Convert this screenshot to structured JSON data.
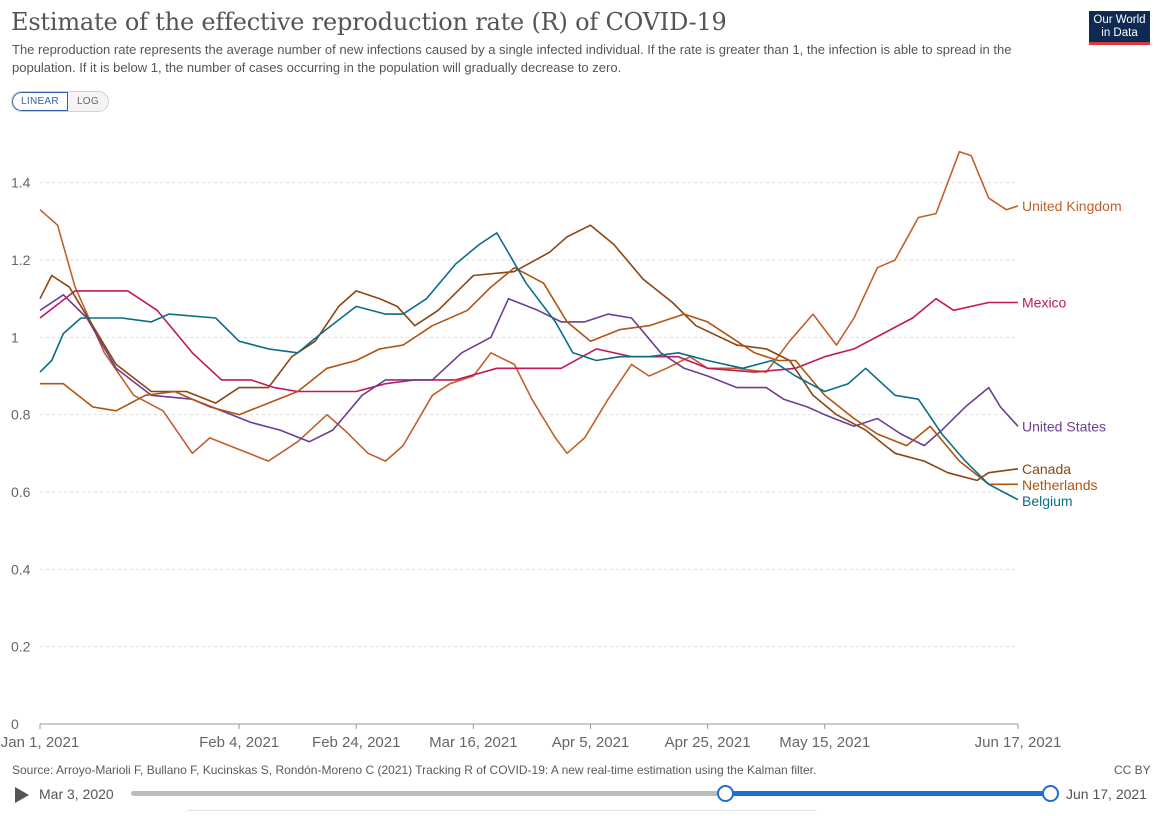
{
  "header": {
    "title": "Estimate of the effective reproduction rate (R) of COVID-19",
    "subtitle": "The reproduction rate represents the average number of new infections caused by a single infected individual. If the rate is greater than 1, the infection is able to spread in the population. If it is below 1, the number of cases occurring in the population will gradually decrease to zero.",
    "logo_line1": "Our World",
    "logo_line2": "in Data"
  },
  "controls": {
    "linear_label": "LINEAR",
    "log_label": "LOG",
    "active_scale": "linear"
  },
  "footer": {
    "source": "Source: Arroyo-Marioli F, Bullano F, Kucinskas S, Rondón-Moreno C (2021) Tracking R of COVID-19: A new real-time estimation using the Kalman filter.",
    "license": "CC BY"
  },
  "timeline": {
    "start_label": "Mar 3, 2020",
    "end_label": "Jun 17, 2021",
    "selected_start_fraction": 0.646,
    "selected_end_fraction": 1.0
  },
  "chart_data": {
    "type": "line",
    "title": "Estimate of the effective reproduction rate (R) of COVID-19",
    "xlabel": "",
    "ylabel": "",
    "x_unit": "date",
    "x_range": [
      "2021-01-01",
      "2021-06-17"
    ],
    "ylim": [
      0,
      1.5
    ],
    "yticks": [
      0,
      0.2,
      0.4,
      0.6,
      0.8,
      1,
      1.2,
      1.4
    ],
    "ytick_labels": [
      "0",
      "0.2",
      "0.4",
      "0.6",
      "0.8",
      "1",
      "1.2",
      "1.4"
    ],
    "xticks": [
      "2021-01-01",
      "2021-02-04",
      "2021-02-24",
      "2021-03-16",
      "2021-04-05",
      "2021-04-25",
      "2021-05-15",
      "2021-06-17"
    ],
    "xtick_labels": [
      "Jan 1, 2021",
      "Feb 4, 2021",
      "Feb 24, 2021",
      "Mar 16, 2021",
      "Apr 5, 2021",
      "Apr 25, 2021",
      "May 15, 2021",
      "Jun 17, 2021"
    ],
    "grid": true,
    "legend": "end-of-line labels",
    "series": [
      {
        "name": "United Kingdom",
        "color": "#c1602c",
        "points": [
          [
            "2021-01-01",
            1.33
          ],
          [
            "2021-01-04",
            1.29
          ],
          [
            "2021-01-07",
            1.13
          ],
          [
            "2021-01-12",
            0.96
          ],
          [
            "2021-01-17",
            0.85
          ],
          [
            "2021-01-22",
            0.81
          ],
          [
            "2021-01-27",
            0.7
          ],
          [
            "2021-01-30",
            0.74
          ],
          [
            "2021-02-04",
            0.71
          ],
          [
            "2021-02-09",
            0.68
          ],
          [
            "2021-02-14",
            0.73
          ],
          [
            "2021-02-19",
            0.8
          ],
          [
            "2021-02-22",
            0.76
          ],
          [
            "2021-02-26",
            0.7
          ],
          [
            "2021-03-01",
            0.68
          ],
          [
            "2021-03-04",
            0.72
          ],
          [
            "2021-03-09",
            0.85
          ],
          [
            "2021-03-12",
            0.88
          ],
          [
            "2021-03-16",
            0.9
          ],
          [
            "2021-03-19",
            0.96
          ],
          [
            "2021-03-23",
            0.93
          ],
          [
            "2021-03-26",
            0.84
          ],
          [
            "2021-03-30",
            0.74
          ],
          [
            "2021-04-01",
            0.7
          ],
          [
            "2021-04-04",
            0.74
          ],
          [
            "2021-04-08",
            0.84
          ],
          [
            "2021-04-12",
            0.93
          ],
          [
            "2021-04-15",
            0.9
          ],
          [
            "2021-04-18",
            0.92
          ],
          [
            "2021-04-22",
            0.95
          ],
          [
            "2021-04-25",
            0.92
          ],
          [
            "2021-04-30",
            0.92
          ],
          [
            "2021-05-05",
            0.91
          ],
          [
            "2021-05-09",
            0.99
          ],
          [
            "2021-05-13",
            1.06
          ],
          [
            "2021-05-17",
            0.98
          ],
          [
            "2021-05-20",
            1.05
          ],
          [
            "2021-05-24",
            1.18
          ],
          [
            "2021-05-27",
            1.2
          ],
          [
            "2021-05-31",
            1.31
          ],
          [
            "2021-06-03",
            1.32
          ],
          [
            "2021-06-07",
            1.48
          ],
          [
            "2021-06-09",
            1.47
          ],
          [
            "2021-06-12",
            1.36
          ],
          [
            "2021-06-15",
            1.33
          ],
          [
            "2021-06-17",
            1.34
          ]
        ]
      },
      {
        "name": "Mexico",
        "color": "#c2185b",
        "points": [
          [
            "2021-01-01",
            1.05
          ],
          [
            "2021-01-07",
            1.12
          ],
          [
            "2021-01-16",
            1.12
          ],
          [
            "2021-01-21",
            1.07
          ],
          [
            "2021-01-27",
            0.96
          ],
          [
            "2021-02-01",
            0.89
          ],
          [
            "2021-02-06",
            0.89
          ],
          [
            "2021-02-10",
            0.87
          ],
          [
            "2021-02-14",
            0.86
          ],
          [
            "2021-02-24",
            0.86
          ],
          [
            "2021-03-01",
            0.88
          ],
          [
            "2021-03-06",
            0.89
          ],
          [
            "2021-03-13",
            0.89
          ],
          [
            "2021-03-20",
            0.92
          ],
          [
            "2021-03-31",
            0.92
          ],
          [
            "2021-04-06",
            0.97
          ],
          [
            "2021-04-12",
            0.95
          ],
          [
            "2021-04-20",
            0.95
          ],
          [
            "2021-04-25",
            0.92
          ],
          [
            "2021-05-03",
            0.91
          ],
          [
            "2021-05-10",
            0.92
          ],
          [
            "2021-05-15",
            0.95
          ],
          [
            "2021-05-20",
            0.97
          ],
          [
            "2021-05-30",
            1.05
          ],
          [
            "2021-06-03",
            1.1
          ],
          [
            "2021-06-06",
            1.07
          ],
          [
            "2021-06-12",
            1.09
          ],
          [
            "2021-06-17",
            1.09
          ]
        ]
      },
      {
        "name": "United States",
        "color": "#6d3e91",
        "points": [
          [
            "2021-01-01",
            1.07
          ],
          [
            "2021-01-05",
            1.11
          ],
          [
            "2021-01-09",
            1.05
          ],
          [
            "2021-01-14",
            0.92
          ],
          [
            "2021-01-20",
            0.85
          ],
          [
            "2021-01-27",
            0.84
          ],
          [
            "2021-02-01",
            0.81
          ],
          [
            "2021-02-06",
            0.78
          ],
          [
            "2021-02-11",
            0.76
          ],
          [
            "2021-02-16",
            0.73
          ],
          [
            "2021-02-20",
            0.76
          ],
          [
            "2021-02-25",
            0.85
          ],
          [
            "2021-03-01",
            0.89
          ],
          [
            "2021-03-09",
            0.89
          ],
          [
            "2021-03-14",
            0.96
          ],
          [
            "2021-03-19",
            1.0
          ],
          [
            "2021-03-22",
            1.1
          ],
          [
            "2021-03-27",
            1.07
          ],
          [
            "2021-03-31",
            1.04
          ],
          [
            "2021-04-04",
            1.04
          ],
          [
            "2021-04-08",
            1.06
          ],
          [
            "2021-04-12",
            1.05
          ],
          [
            "2021-04-17",
            0.96
          ],
          [
            "2021-04-21",
            0.92
          ],
          [
            "2021-04-25",
            0.9
          ],
          [
            "2021-04-30",
            0.87
          ],
          [
            "2021-05-05",
            0.87
          ],
          [
            "2021-05-08",
            0.84
          ],
          [
            "2021-05-12",
            0.82
          ],
          [
            "2021-05-15",
            0.8
          ],
          [
            "2021-05-20",
            0.77
          ],
          [
            "2021-05-24",
            0.79
          ],
          [
            "2021-05-28",
            0.75
          ],
          [
            "2021-06-01",
            0.72
          ],
          [
            "2021-06-04",
            0.76
          ],
          [
            "2021-06-08",
            0.82
          ],
          [
            "2021-06-12",
            0.87
          ],
          [
            "2021-06-14",
            0.82
          ],
          [
            "2021-06-17",
            0.77
          ]
        ]
      },
      {
        "name": "Canada",
        "color": "#8c4512",
        "points": [
          [
            "2021-01-01",
            1.1
          ],
          [
            "2021-01-03",
            1.16
          ],
          [
            "2021-01-06",
            1.13
          ],
          [
            "2021-01-10",
            1.03
          ],
          [
            "2021-01-14",
            0.93
          ],
          [
            "2021-01-20",
            0.86
          ],
          [
            "2021-01-26",
            0.86
          ],
          [
            "2021-01-31",
            0.83
          ],
          [
            "2021-02-04",
            0.87
          ],
          [
            "2021-02-09",
            0.87
          ],
          [
            "2021-02-13",
            0.95
          ],
          [
            "2021-02-17",
            0.99
          ],
          [
            "2021-02-21",
            1.08
          ],
          [
            "2021-02-24",
            1.12
          ],
          [
            "2021-02-28",
            1.1
          ],
          [
            "2021-03-03",
            1.08
          ],
          [
            "2021-03-06",
            1.03
          ],
          [
            "2021-03-10",
            1.07
          ],
          [
            "2021-03-14",
            1.13
          ],
          [
            "2021-03-16",
            1.16
          ],
          [
            "2021-03-23",
            1.17
          ],
          [
            "2021-03-29",
            1.22
          ],
          [
            "2021-04-01",
            1.26
          ],
          [
            "2021-04-05",
            1.29
          ],
          [
            "2021-04-09",
            1.24
          ],
          [
            "2021-04-14",
            1.15
          ],
          [
            "2021-04-19",
            1.09
          ],
          [
            "2021-04-23",
            1.03
          ],
          [
            "2021-04-30",
            0.98
          ],
          [
            "2021-05-05",
            0.97
          ],
          [
            "2021-05-09",
            0.94
          ],
          [
            "2021-05-13",
            0.85
          ],
          [
            "2021-05-17",
            0.8
          ],
          [
            "2021-05-22",
            0.76
          ],
          [
            "2021-05-27",
            0.7
          ],
          [
            "2021-06-01",
            0.68
          ],
          [
            "2021-06-05",
            0.65
          ],
          [
            "2021-06-10",
            0.63
          ],
          [
            "2021-06-12",
            0.65
          ],
          [
            "2021-06-17",
            0.66
          ]
        ]
      },
      {
        "name": "Netherlands",
        "color": "#b15412",
        "points": [
          [
            "2021-01-01",
            0.88
          ],
          [
            "2021-01-05",
            0.88
          ],
          [
            "2021-01-10",
            0.82
          ],
          [
            "2021-01-14",
            0.81
          ],
          [
            "2021-01-19",
            0.85
          ],
          [
            "2021-01-24",
            0.86
          ],
          [
            "2021-01-30",
            0.82
          ],
          [
            "2021-02-04",
            0.8
          ],
          [
            "2021-02-09",
            0.83
          ],
          [
            "2021-02-14",
            0.86
          ],
          [
            "2021-02-19",
            0.92
          ],
          [
            "2021-02-24",
            0.94
          ],
          [
            "2021-02-28",
            0.97
          ],
          [
            "2021-03-04",
            0.98
          ],
          [
            "2021-03-09",
            1.03
          ],
          [
            "2021-03-15",
            1.07
          ],
          [
            "2021-03-19",
            1.13
          ],
          [
            "2021-03-23",
            1.18
          ],
          [
            "2021-03-28",
            1.14
          ],
          [
            "2021-04-01",
            1.04
          ],
          [
            "2021-04-05",
            0.99
          ],
          [
            "2021-04-10",
            1.02
          ],
          [
            "2021-04-15",
            1.03
          ],
          [
            "2021-04-21",
            1.06
          ],
          [
            "2021-04-25",
            1.04
          ],
          [
            "2021-04-29",
            1.0
          ],
          [
            "2021-05-03",
            0.96
          ],
          [
            "2021-05-07",
            0.94
          ],
          [
            "2021-05-10",
            0.94
          ],
          [
            "2021-05-15",
            0.85
          ],
          [
            "2021-05-20",
            0.79
          ],
          [
            "2021-05-24",
            0.75
          ],
          [
            "2021-05-29",
            0.72
          ],
          [
            "2021-06-02",
            0.77
          ],
          [
            "2021-06-07",
            0.68
          ],
          [
            "2021-06-12",
            0.62
          ],
          [
            "2021-06-17",
            0.62
          ]
        ]
      },
      {
        "name": "Belgium",
        "color": "#0b6e88",
        "points": [
          [
            "2021-01-01",
            0.91
          ],
          [
            "2021-01-03",
            0.94
          ],
          [
            "2021-01-05",
            1.01
          ],
          [
            "2021-01-08",
            1.05
          ],
          [
            "2021-01-15",
            1.05
          ],
          [
            "2021-01-20",
            1.04
          ],
          [
            "2021-01-23",
            1.06
          ],
          [
            "2021-01-31",
            1.05
          ],
          [
            "2021-02-04",
            0.99
          ],
          [
            "2021-02-09",
            0.97
          ],
          [
            "2021-02-14",
            0.96
          ],
          [
            "2021-02-18",
            1.01
          ],
          [
            "2021-02-24",
            1.08
          ],
          [
            "2021-03-01",
            1.06
          ],
          [
            "2021-03-04",
            1.06
          ],
          [
            "2021-03-08",
            1.1
          ],
          [
            "2021-03-13",
            1.19
          ],
          [
            "2021-03-17",
            1.24
          ],
          [
            "2021-03-20",
            1.27
          ],
          [
            "2021-03-25",
            1.14
          ],
          [
            "2021-03-30",
            1.04
          ],
          [
            "2021-04-02",
            0.96
          ],
          [
            "2021-04-06",
            0.94
          ],
          [
            "2021-04-10",
            0.95
          ],
          [
            "2021-04-15",
            0.95
          ],
          [
            "2021-04-20",
            0.96
          ],
          [
            "2021-04-25",
            0.94
          ],
          [
            "2021-05-01",
            0.92
          ],
          [
            "2021-05-06",
            0.94
          ],
          [
            "2021-05-10",
            0.9
          ],
          [
            "2021-05-15",
            0.86
          ],
          [
            "2021-05-19",
            0.88
          ],
          [
            "2021-05-22",
            0.92
          ],
          [
            "2021-05-27",
            0.85
          ],
          [
            "2021-05-31",
            0.84
          ],
          [
            "2021-06-04",
            0.75
          ],
          [
            "2021-06-08",
            0.68
          ],
          [
            "2021-06-12",
            0.62
          ],
          [
            "2021-06-17",
            0.58
          ]
        ]
      }
    ]
  }
}
